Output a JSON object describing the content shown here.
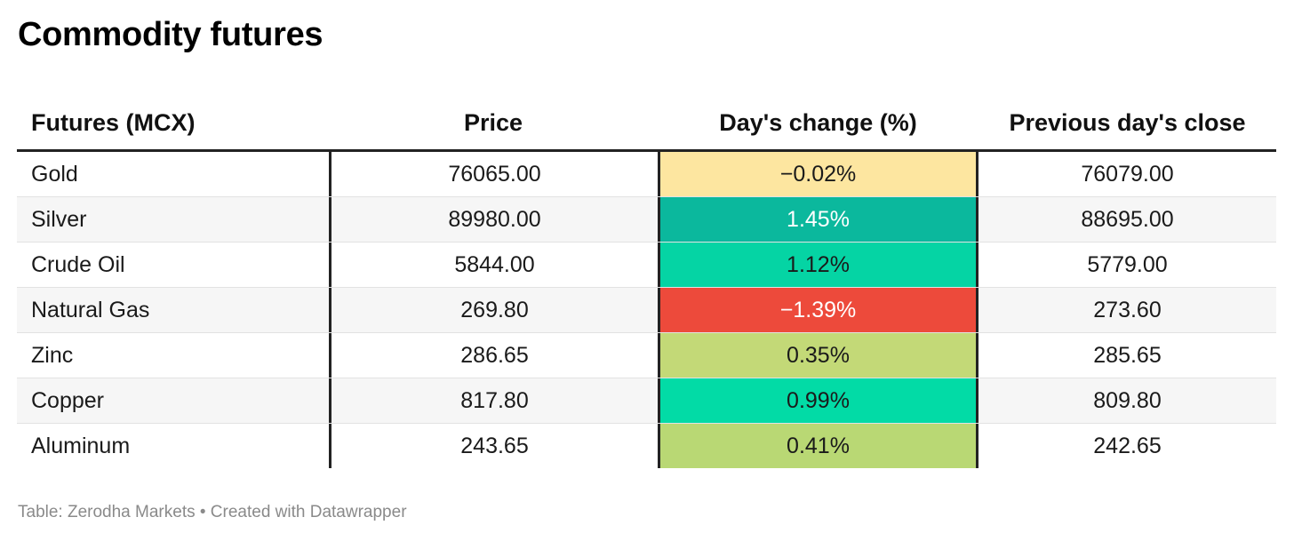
{
  "title": "Commodity futures",
  "footer": "Table: Zerodha Markets • Created with Datawrapper",
  "chart_data": {
    "type": "table",
    "title": "Commodity futures",
    "columns": [
      "Futures (MCX)",
      "Price",
      "Day's change (%)",
      "Previous day's close"
    ],
    "rows": [
      {
        "name": "Gold",
        "price": "76065.00",
        "change": "−0.02%",
        "prev_close": "76079.00",
        "change_bg": "#fde6a0",
        "change_fg": "#1a1a1a"
      },
      {
        "name": "Silver",
        "price": "89980.00",
        "change": "1.45%",
        "prev_close": "88695.00",
        "change_bg": "#0bb89d",
        "change_fg": "#ffffff"
      },
      {
        "name": "Crude Oil",
        "price": "5844.00",
        "change": "1.12%",
        "prev_close": "5779.00",
        "change_bg": "#05d4a4",
        "change_fg": "#1a1a1a"
      },
      {
        "name": "Natural Gas",
        "price": "269.80",
        "change": "−1.39%",
        "prev_close": "273.60",
        "change_bg": "#ed4a3b",
        "change_fg": "#ffffff"
      },
      {
        "name": "Zinc",
        "price": "286.65",
        "change": "0.35%",
        "prev_close": "285.65",
        "change_bg": "#c3d977",
        "change_fg": "#1a1a1a"
      },
      {
        "name": "Copper",
        "price": "817.80",
        "change": "0.99%",
        "prev_close": "809.80",
        "change_bg": "#02dba6",
        "change_fg": "#1a1a1a"
      },
      {
        "name": "Aluminum",
        "price": "243.65",
        "change": "0.41%",
        "prev_close": "242.65",
        "change_bg": "#b9d874",
        "change_fg": "#1a1a1a"
      }
    ]
  }
}
